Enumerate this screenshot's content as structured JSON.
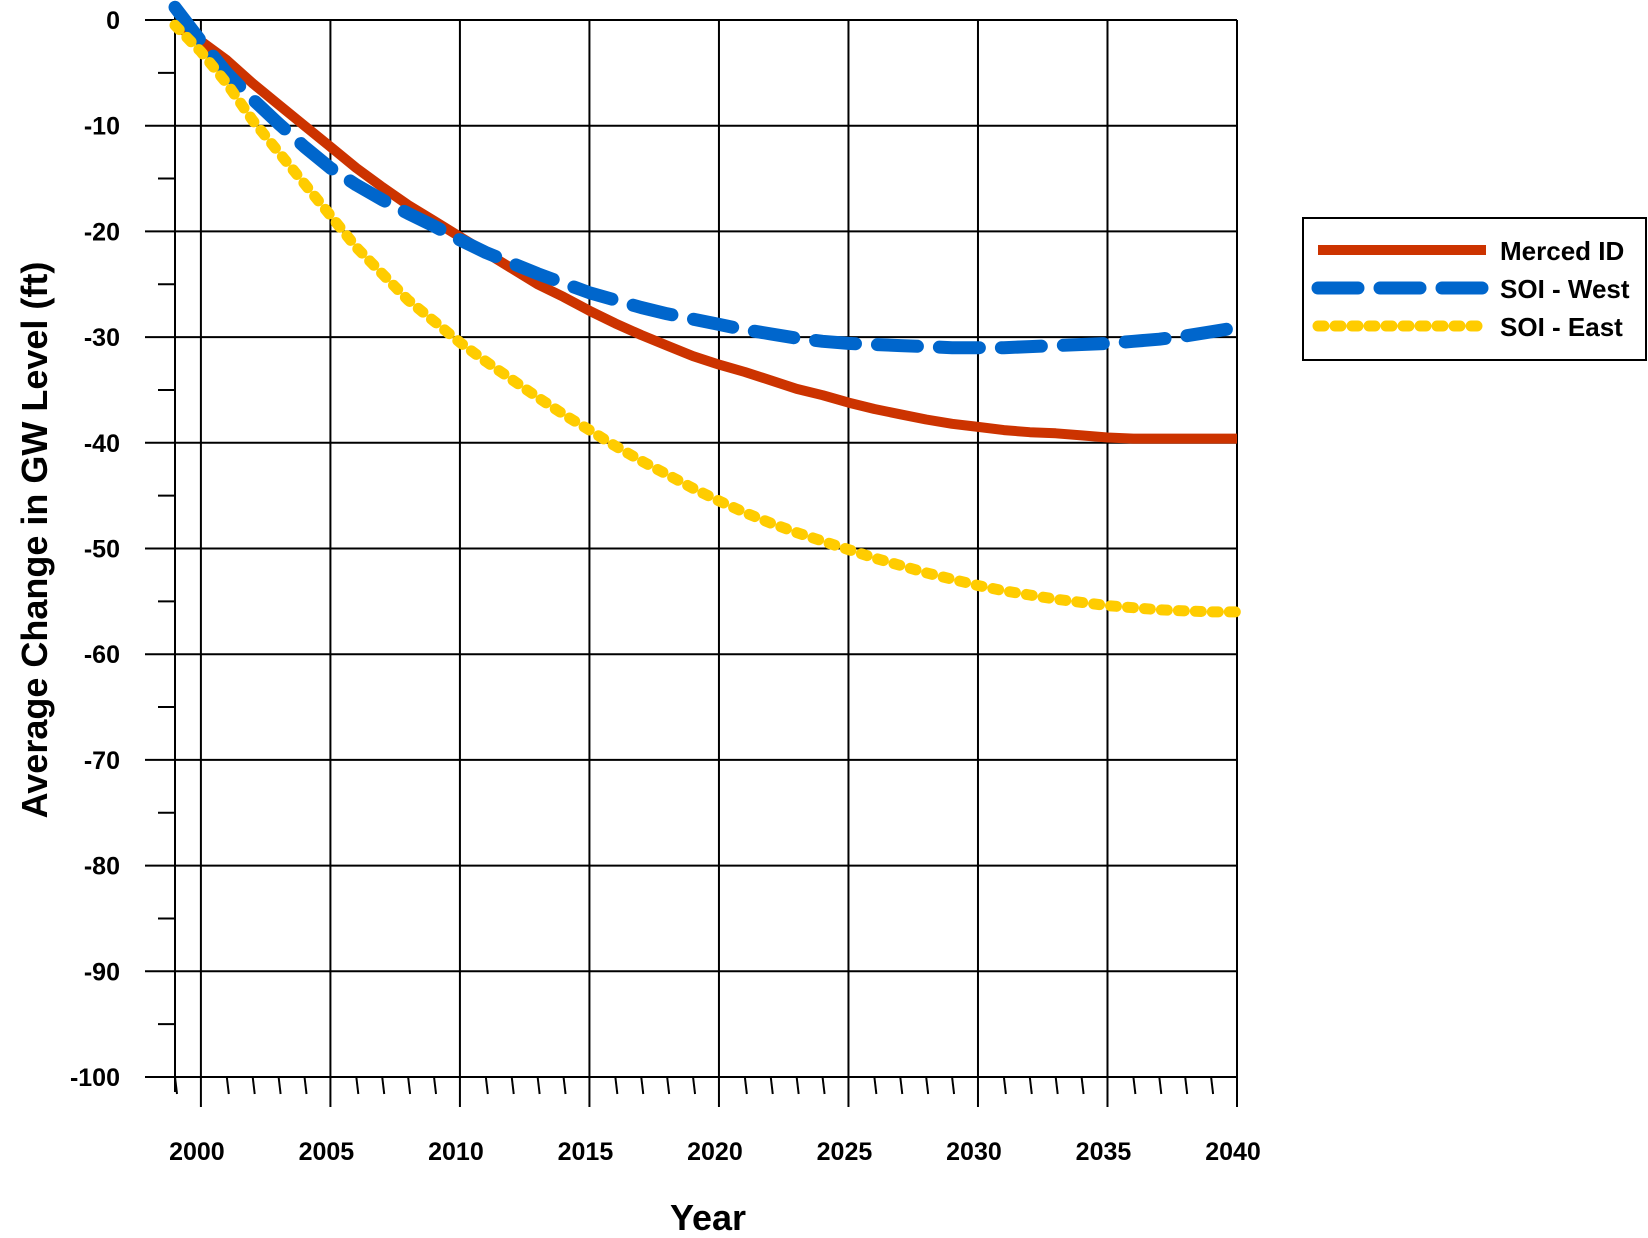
{
  "chart_data": {
    "type": "line",
    "title": "",
    "xlabel": "Year",
    "ylabel": "Average Change in GW Level (ft)",
    "xlim": [
      1999,
      2040
    ],
    "ylim": [
      -100,
      0
    ],
    "x_ticks": [
      2000,
      2005,
      2010,
      2015,
      2020,
      2025,
      2030,
      2035,
      2040
    ],
    "y_ticks": [
      0,
      -10,
      -20,
      -30,
      -40,
      -50,
      -60,
      -70,
      -80,
      -90,
      -100
    ],
    "x_tick_labels": [
      "2000",
      "2005",
      "2010",
      "2015",
      "2020",
      "2025",
      "2030",
      "2035",
      "2040"
    ],
    "y_tick_labels": [
      "0",
      "-10",
      "-20",
      "-30",
      "-40",
      "-50",
      "-60",
      "-70",
      "-80",
      "-90",
      "-100"
    ],
    "grid": true,
    "legend_position": "right",
    "series": [
      {
        "name": "Merced ID",
        "color": "#CC3300",
        "line_style": "solid",
        "x": [
          1999,
          2000,
          2001,
          2002,
          2003,
          2004,
          2005,
          2006,
          2007,
          2008,
          2009,
          2010,
          2011,
          2012,
          2013,
          2014,
          2015,
          2016,
          2017,
          2018,
          2019,
          2020,
          2021,
          2022,
          2023,
          2024,
          2025,
          2026,
          2027,
          2028,
          2029,
          2030,
          2031,
          2032,
          2033,
          2034,
          2035,
          2036,
          2037,
          2038,
          2039,
          2040
        ],
        "values": [
          -0.5,
          -2,
          -3.8,
          -6,
          -8,
          -10,
          -12,
          -14,
          -15.8,
          -17.5,
          -19,
          -20.5,
          -22,
          -23.5,
          -25,
          -26.2,
          -27.5,
          -28.7,
          -29.8,
          -30.8,
          -31.8,
          -32.6,
          -33.3,
          -34.1,
          -34.9,
          -35.5,
          -36.2,
          -36.8,
          -37.3,
          -37.8,
          -38.2,
          -38.5,
          -38.8,
          -39,
          -39.1,
          -39.3,
          -39.5,
          -39.6,
          -39.6,
          -39.6,
          -39.6,
          -39.6
        ]
      },
      {
        "name": "SOI - West",
        "color": "#0066CC",
        "line_style": "dashed",
        "x": [
          1999,
          2000,
          2001,
          2002,
          2003,
          2004,
          2005,
          2006,
          2007,
          2008,
          2009,
          2010,
          2011,
          2012,
          2013,
          2014,
          2015,
          2016,
          2017,
          2018,
          2019,
          2020,
          2021,
          2022,
          2023,
          2024,
          2025,
          2026,
          2027,
          2028,
          2029,
          2030,
          2031,
          2032,
          2033,
          2034,
          2035,
          2036,
          2037,
          2038,
          2039,
          2040
        ],
        "values": [
          1.2,
          -2,
          -5,
          -7.5,
          -9.8,
          -12,
          -14,
          -15.6,
          -17,
          -18.3,
          -19.5,
          -20.8,
          -22,
          -23,
          -24,
          -24.9,
          -25.8,
          -26.5,
          -27.2,
          -27.8,
          -28.3,
          -28.8,
          -29.3,
          -29.7,
          -30.1,
          -30.4,
          -30.6,
          -30.7,
          -30.8,
          -30.9,
          -31,
          -31,
          -31,
          -30.9,
          -30.8,
          -30.7,
          -30.6,
          -30.4,
          -30.2,
          -29.9,
          -29.5,
          -29.1
        ]
      },
      {
        "name": "SOI - East",
        "color": "#FFCC00",
        "line_style": "dotted",
        "x": [
          1999,
          2000,
          2001,
          2002,
          2003,
          2004,
          2005,
          2006,
          2007,
          2008,
          2009,
          2010,
          2011,
          2012,
          2013,
          2014,
          2015,
          2016,
          2017,
          2018,
          2019,
          2020,
          2021,
          2022,
          2023,
          2024,
          2025,
          2026,
          2027,
          2028,
          2029,
          2030,
          2031,
          2032,
          2033,
          2034,
          2035,
          2036,
          2037,
          2038,
          2039,
          2040
        ],
        "values": [
          -0.5,
          -3,
          -6,
          -9.5,
          -12.5,
          -15.5,
          -18.5,
          -21.5,
          -24,
          -26.5,
          -28.5,
          -30.5,
          -32.3,
          -34,
          -35.7,
          -37.3,
          -38.8,
          -40.3,
          -41.7,
          -43,
          -44.3,
          -45.5,
          -46.6,
          -47.6,
          -48.5,
          -49.3,
          -50.1,
          -50.9,
          -51.6,
          -52.3,
          -52.9,
          -53.5,
          -54,
          -54.4,
          -54.8,
          -55.1,
          -55.4,
          -55.6,
          -55.8,
          -55.9,
          -56,
          -56
        ]
      }
    ]
  }
}
